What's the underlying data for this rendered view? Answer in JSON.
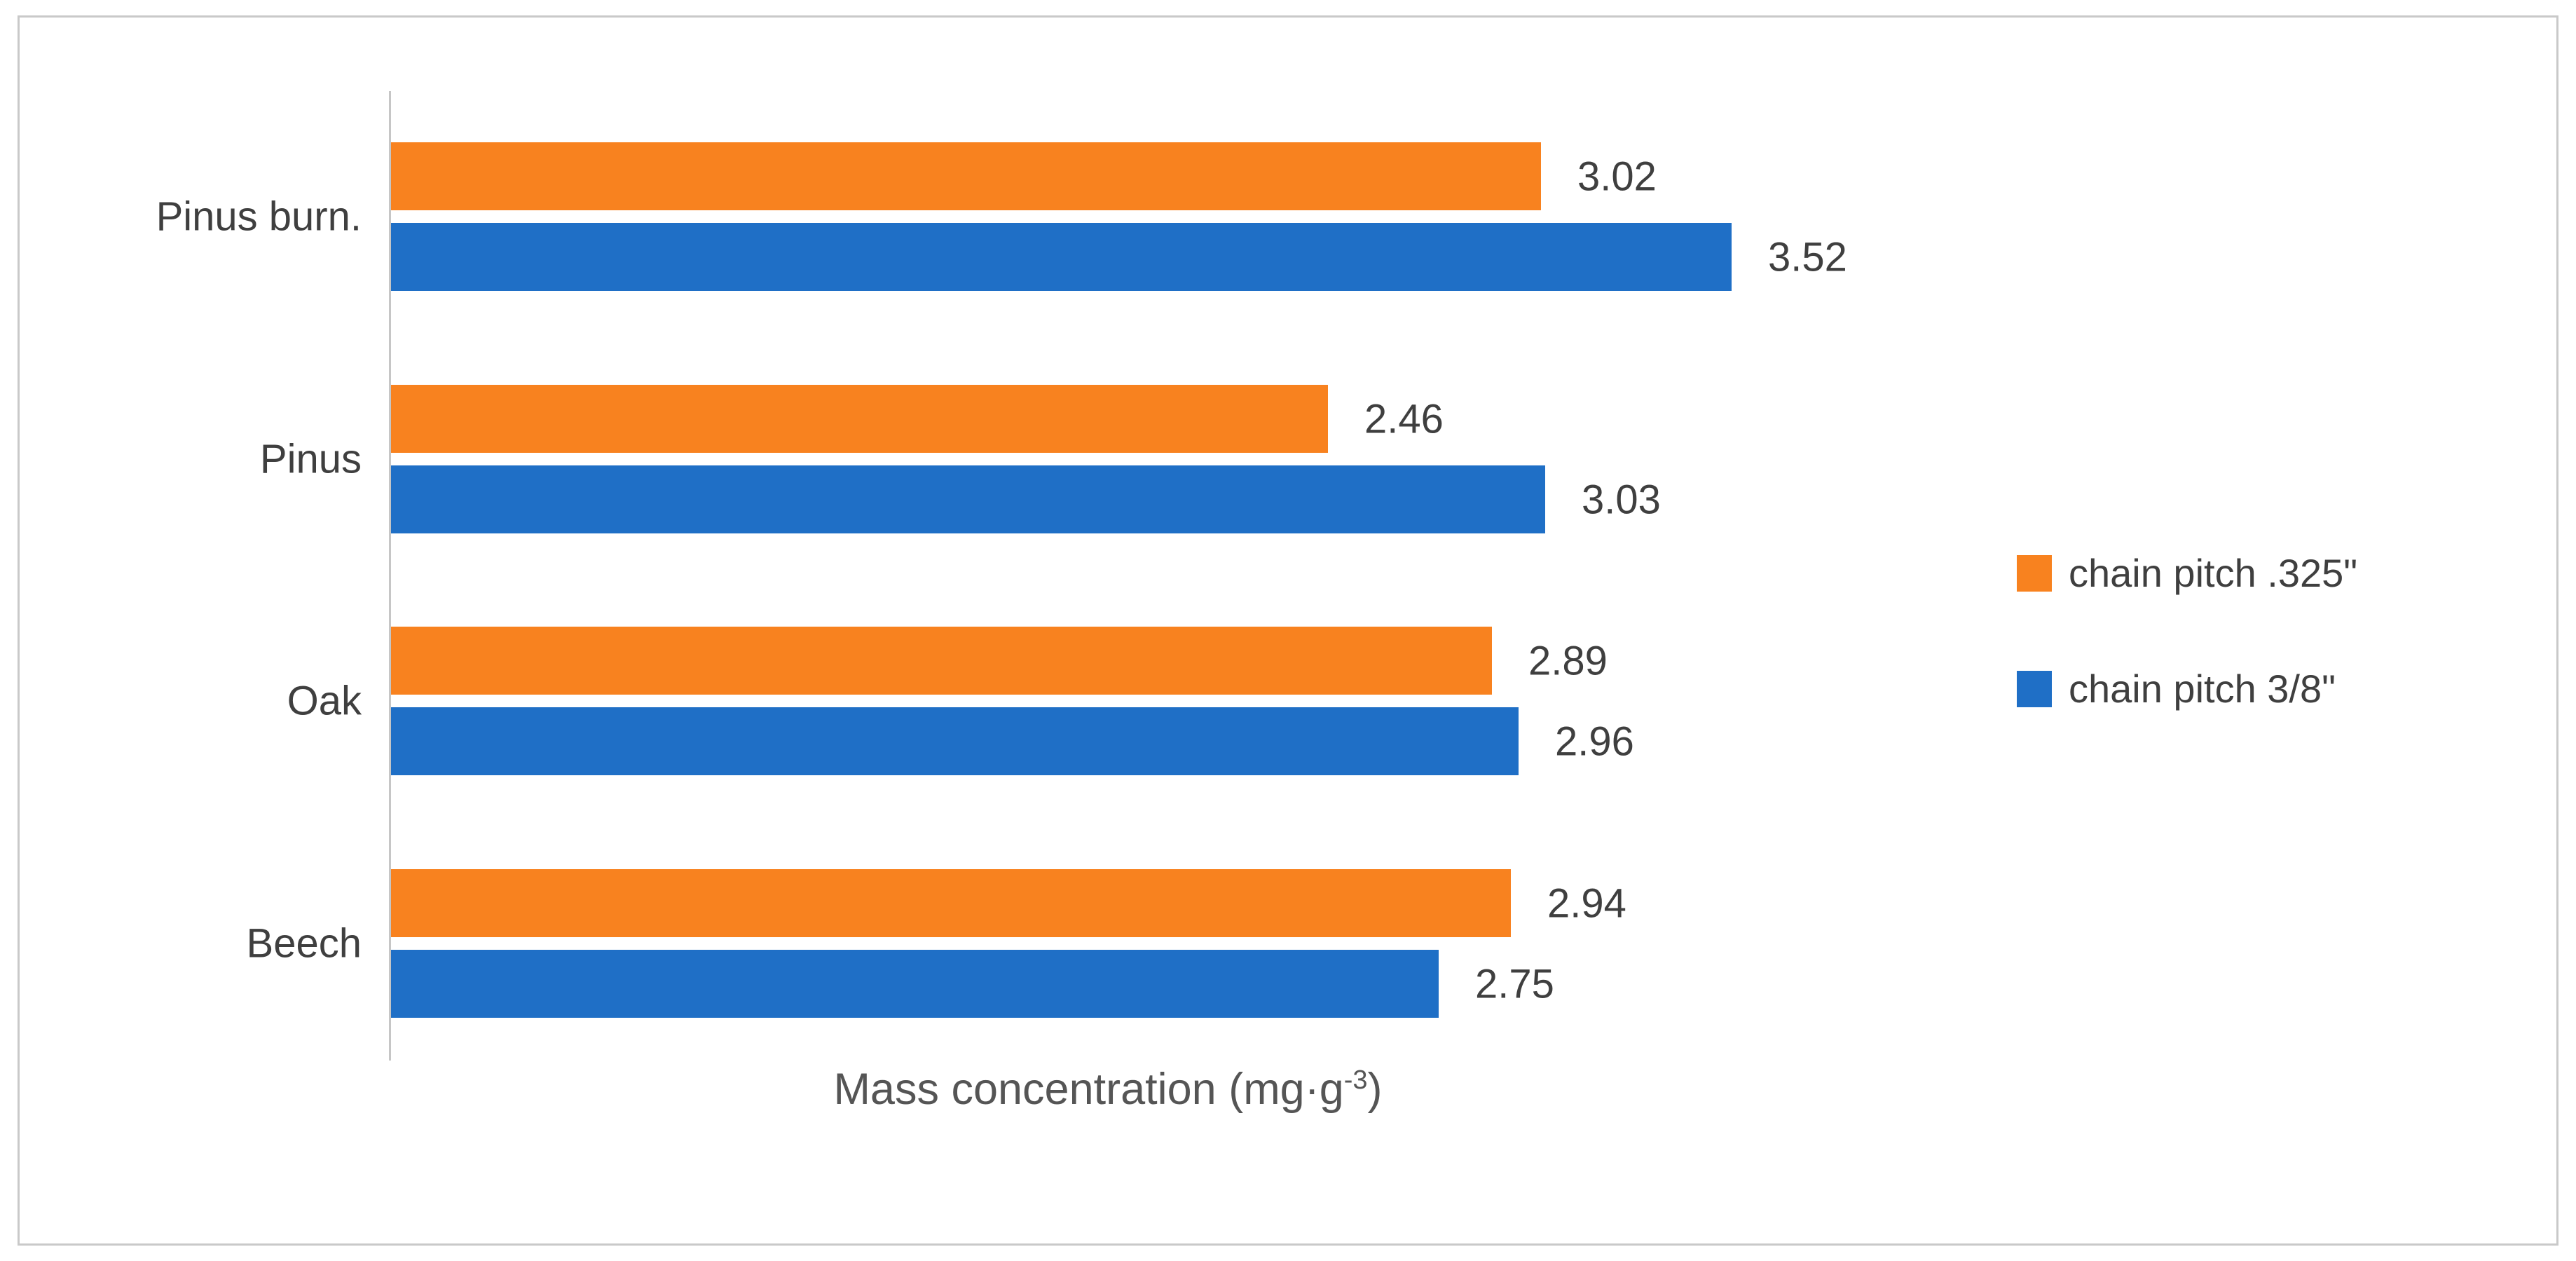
{
  "figure": {
    "kind": "scanned-excel-style-figure",
    "background": "#ffffff",
    "border_color": "#c9c9c9",
    "axis_line_color": "#c6c6c6",
    "text_color": "#3f3f3f"
  },
  "chart_data": {
    "type": "bar",
    "orientation": "horizontal",
    "categories": [
      "Pinus burn.",
      "Pinus",
      "Oak",
      "Beech"
    ],
    "series": [
      {
        "name": "chain pitch .325\"",
        "color": "#f8821f",
        "values": [
          3.02,
          2.46,
          2.89,
          2.94
        ]
      },
      {
        "name": "chain pitch 3/8\"",
        "color": "#1f6fc6",
        "values": [
          3.52,
          3.03,
          2.96,
          2.75
        ]
      }
    ],
    "xlabel": "Mass concentration (mg·g⁻³)",
    "ylabel": "",
    "title": "",
    "xlim": [
      0,
      3.8
    ],
    "grid": false,
    "value_labels_shown": true,
    "legend_position": "right",
    "bar_order_in_group": [
      "chain pitch .325\"",
      "chain pitch 3/8\""
    ]
  },
  "axis_label": {
    "main": "Mass concentration (mg·g",
    "superscript": "-3",
    "close": ")"
  },
  "legend": {
    "items": [
      {
        "label": "chain pitch .325\"",
        "swatch": "orange-square-icon"
      },
      {
        "label": "chain pitch 3/8\"",
        "swatch": "blue-square-icon"
      }
    ]
  }
}
